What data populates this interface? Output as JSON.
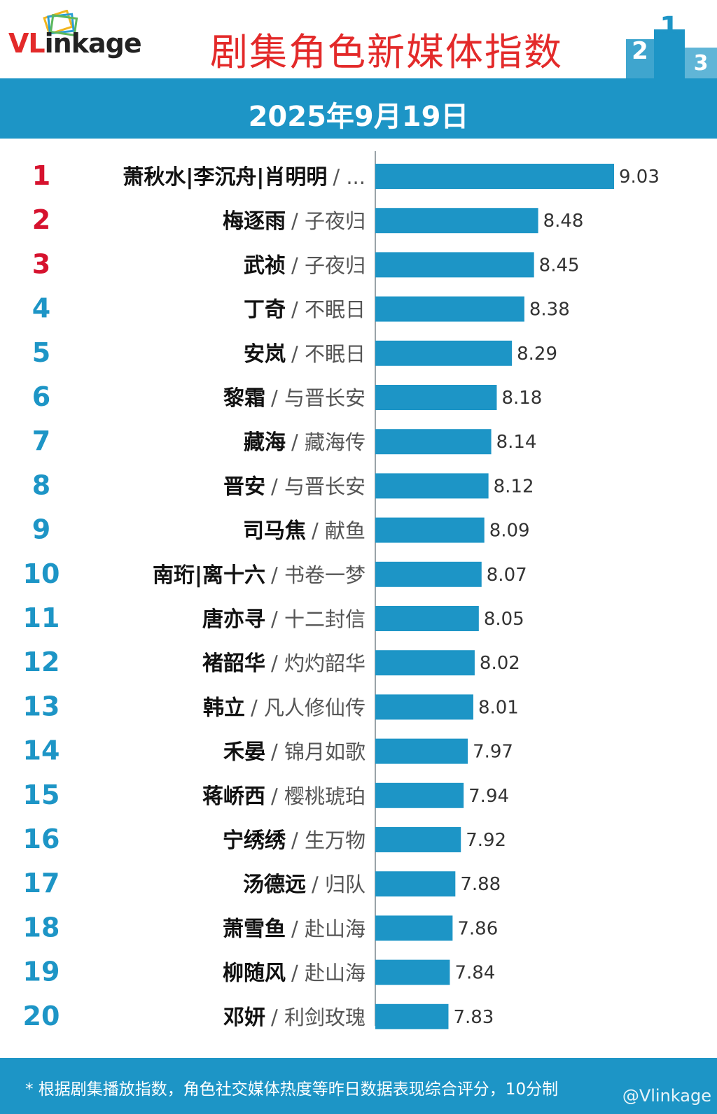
{
  "header": {
    "logo_text_v": "VL",
    "logo_text_rest": "inkage",
    "title": "剧集角色新媒体指数"
  },
  "date": "2025年9月19日",
  "footer": {
    "note": "* 根据剧集播放指数，角色社交媒体热度等昨日数据表现综合评分，10分制",
    "watermark": "@Vlinkage"
  },
  "colors": {
    "accent": "#1d95c6",
    "brand_red": "#e32a2a",
    "rank_top": "#d6122e",
    "rank_other": "#1d95c6",
    "bar": "#1d95c6"
  },
  "chart_data": {
    "type": "bar",
    "orientation": "horizontal",
    "xlim": [
      7.3,
      9.03
    ],
    "categories": [
      {
        "rank": "1",
        "name": "萧秋水|李沉舟|肖明明",
        "show": "/ ..."
      },
      {
        "rank": "2",
        "name": "梅逐雨",
        "show": "/ 子夜归"
      },
      {
        "rank": "3",
        "name": "武祯",
        "show": "/ 子夜归"
      },
      {
        "rank": "4",
        "name": "丁奇",
        "show": "/ 不眠日"
      },
      {
        "rank": "5",
        "name": "安岚",
        "show": "/ 不眠日"
      },
      {
        "rank": "6",
        "name": "黎霜",
        "show": "/ 与晋长安"
      },
      {
        "rank": "7",
        "name": "藏海",
        "show": "/ 藏海传"
      },
      {
        "rank": "8",
        "name": "晋安",
        "show": "/ 与晋长安"
      },
      {
        "rank": "9",
        "name": "司马焦",
        "show": "/ 献鱼"
      },
      {
        "rank": "10",
        "name": "南珩|离十六",
        "show": "/ 书卷一梦"
      },
      {
        "rank": "11",
        "name": "唐亦寻",
        "show": "/ 十二封信"
      },
      {
        "rank": "12",
        "name": "褚韶华",
        "show": "/ 灼灼韶华"
      },
      {
        "rank": "13",
        "name": "韩立",
        "show": "/ 凡人修仙传"
      },
      {
        "rank": "14",
        "name": "禾晏",
        "show": "/ 锦月如歌"
      },
      {
        "rank": "15",
        "name": "蒋峤西",
        "show": "/ 樱桃琥珀"
      },
      {
        "rank": "16",
        "name": "宁绣绣",
        "show": "/ 生万物"
      },
      {
        "rank": "17",
        "name": "汤德远",
        "show": "/ 归队"
      },
      {
        "rank": "18",
        "name": "萧雪鱼",
        "show": "/ 赴山海"
      },
      {
        "rank": "19",
        "name": "柳随风",
        "show": "/ 赴山海"
      },
      {
        "rank": "20",
        "name": "邓妍",
        "show": "/ 利剑玫瑰"
      }
    ],
    "values": [
      9.03,
      8.48,
      8.45,
      8.38,
      8.29,
      8.18,
      8.14,
      8.12,
      8.09,
      8.07,
      8.05,
      8.02,
      8.01,
      7.97,
      7.94,
      7.92,
      7.88,
      7.86,
      7.84,
      7.83
    ],
    "value_labels": [
      "9.03",
      "8.48",
      "8.45",
      "8.38",
      "8.29",
      "8.18",
      "8.14",
      "8.12",
      "8.09",
      "8.07",
      "8.05",
      "8.02",
      "8.01",
      "7.97",
      "7.94",
      "7.92",
      "7.88",
      "7.86",
      "7.84",
      "7.83"
    ],
    "grid": false,
    "legend": "none"
  }
}
